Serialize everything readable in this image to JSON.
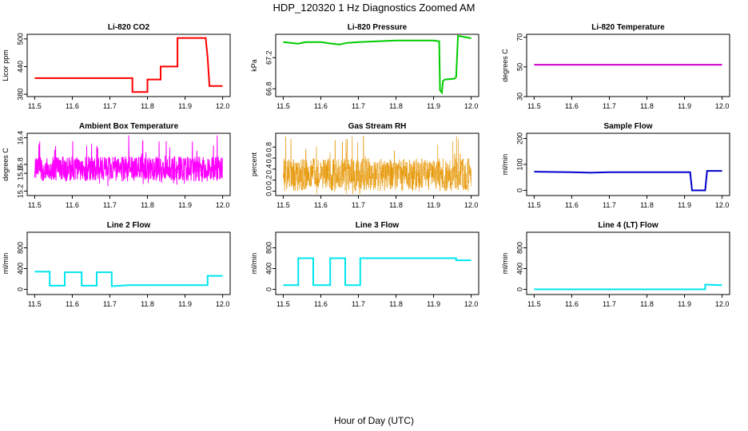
{
  "figure": {
    "title": "HDP_120320  1 Hz Diagnostics Zoomed AM",
    "xlabel": "Hour of Day (UTC)"
  },
  "chart_data": [
    {
      "type": "line",
      "title": "Li-820 CO2",
      "ylabel": "Licor ppm",
      "xlim": [
        11.5,
        12.0
      ],
      "xticks": [
        "11.5",
        "11.6",
        "11.7",
        "11.8",
        "11.9",
        "12.0"
      ],
      "ylim": [
        375,
        510
      ],
      "yticks": [
        "380",
        "440",
        "500"
      ],
      "color": "#ff0000",
      "style": "step",
      "x": [
        11.5,
        11.76,
        11.76,
        11.8,
        11.8,
        11.835,
        11.835,
        11.88,
        11.88,
        11.955,
        11.96,
        11.965,
        12.0
      ],
      "y": [
        415,
        415,
        385,
        385,
        412,
        412,
        440,
        440,
        502,
        502,
        460,
        398,
        398
      ]
    },
    {
      "type": "line",
      "title": "Li-820 Pressure",
      "ylabel": "kPa",
      "xlim": [
        11.5,
        12.0
      ],
      "xticks": [
        "11.5",
        "11.6",
        "11.7",
        "11.8",
        "11.9",
        "12.0"
      ],
      "ylim": [
        66.7,
        67.5
      ],
      "yticks": [
        "66.8",
        "67.2"
      ],
      "color": "#00cc00",
      "style": "line",
      "x": [
        11.5,
        11.54,
        11.56,
        11.6,
        11.63,
        11.65,
        11.67,
        11.7,
        11.75,
        11.8,
        11.85,
        11.9,
        11.915,
        11.917,
        11.922,
        11.925,
        11.93,
        11.955,
        11.96,
        11.965,
        12.0
      ],
      "y": [
        67.4,
        67.38,
        67.4,
        67.4,
        67.38,
        67.37,
        67.39,
        67.4,
        67.41,
        67.42,
        67.42,
        67.42,
        67.41,
        66.78,
        66.75,
        66.9,
        66.92,
        66.93,
        66.95,
        67.48,
        67.45
      ]
    },
    {
      "type": "line",
      "title": "Li-820 Temperature",
      "ylabel": "degrees C",
      "xlim": [
        11.5,
        12.0
      ],
      "xticks": [
        "11.5",
        "11.6",
        "11.7",
        "11.8",
        "11.9",
        "12.0"
      ],
      "ylim": [
        30,
        72
      ],
      "yticks": [
        "30",
        "50",
        "70"
      ],
      "color": "#cc00cc",
      "style": "line",
      "x": [
        11.5,
        12.0
      ],
      "y": [
        51.5,
        51.5
      ]
    },
    {
      "type": "line",
      "title": "Ambient Box Temperature",
      "ylabel": "degrees C",
      "xlim": [
        11.5,
        12.0
      ],
      "xticks": [
        "11.5",
        "11.6",
        "11.7",
        "11.8",
        "11.9",
        "12.0"
      ],
      "ylim": [
        15.1,
        16.5
      ],
      "yticks": [
        "15.2",
        "15.6",
        "15.8",
        "16.4"
      ],
      "color": "#ff00ff",
      "style": "noise",
      "baseline": 15.7,
      "amplitude": 0.28,
      "spike": 0.6,
      "floor": 15.15,
      "ceiling": 16.45
    },
    {
      "type": "scatter",
      "title": "Gas Stream RH",
      "ylabel": "percent",
      "xlim": [
        11.5,
        12.0
      ],
      "xticks": [
        "11.5",
        "11.6",
        "11.7",
        "11.8",
        "11.9",
        "12.0"
      ],
      "ylim": [
        -0.08,
        1.05
      ],
      "yticks": [
        "0.0",
        "0.2",
        "0.4",
        "0.6",
        "0.8"
      ],
      "color": "#e69500",
      "style": "noise",
      "baseline": 0.3,
      "amplitude": 0.3,
      "spike": 0.7,
      "floor": -0.05,
      "ceiling": 1.0
    },
    {
      "type": "line",
      "title": "Sample Flow",
      "ylabel": "ml/min",
      "xlim": [
        11.5,
        12.0
      ],
      "xticks": [
        "11.5",
        "11.6",
        "11.7",
        "11.8",
        "11.9",
        "12.0"
      ],
      "ylim": [
        -20,
        220
      ],
      "yticks": [
        "0",
        "100",
        "200"
      ],
      "color": "#0000cc",
      "style": "step",
      "x": [
        11.5,
        11.6,
        11.65,
        11.7,
        11.8,
        11.915,
        11.92,
        11.955,
        11.96,
        12.0
      ],
      "y": [
        72,
        70,
        68,
        70,
        70,
        70,
        0,
        0,
        75,
        75
      ]
    },
    {
      "type": "line",
      "title": "Line 2 Flow",
      "ylabel": "ml/min",
      "xlim": [
        11.5,
        12.0
      ],
      "xticks": [
        "11.5",
        "11.6",
        "11.7",
        "11.8",
        "11.9",
        "12.0"
      ],
      "ylim": [
        -100,
        1100
      ],
      "yticks": [
        "0",
        "400",
        "800"
      ],
      "color": "#00e5ee",
      "style": "step",
      "x": [
        11.5,
        11.54,
        11.54,
        11.58,
        11.58,
        11.625,
        11.625,
        11.665,
        11.665,
        11.705,
        11.705,
        11.75,
        11.95,
        11.96,
        11.96,
        12.0
      ],
      "y": [
        340,
        340,
        70,
        70,
        330,
        330,
        70,
        70,
        330,
        330,
        60,
        80,
        80,
        80,
        260,
        260
      ]
    },
    {
      "type": "line",
      "title": "Line 3 Flow",
      "ylabel": "ml/min",
      "xlim": [
        11.5,
        12.0
      ],
      "xticks": [
        "11.5",
        "11.6",
        "11.7",
        "11.8",
        "11.9",
        "12.0"
      ],
      "ylim": [
        -100,
        1100
      ],
      "yticks": [
        "0",
        "400",
        "800"
      ],
      "color": "#00e5ee",
      "style": "step",
      "x": [
        11.5,
        11.54,
        11.54,
        11.58,
        11.58,
        11.625,
        11.625,
        11.665,
        11.665,
        11.705,
        11.705,
        11.96,
        11.96,
        12.0
      ],
      "y": [
        80,
        80,
        600,
        600,
        80,
        80,
        600,
        600,
        80,
        80,
        600,
        600,
        560,
        560
      ]
    },
    {
      "type": "line",
      "title": "Line 4 (LT) Flow",
      "ylabel": "ml/min",
      "xlim": [
        11.5,
        12.0
      ],
      "xticks": [
        "11.5",
        "11.6",
        "11.7",
        "11.8",
        "11.9",
        "12.0"
      ],
      "ylim": [
        -100,
        1100
      ],
      "yticks": [
        "0",
        "400",
        "800"
      ],
      "color": "#00e5ee",
      "style": "step",
      "x": [
        11.5,
        11.955,
        11.955,
        12.0
      ],
      "y": [
        0,
        0,
        90,
        80
      ]
    }
  ]
}
